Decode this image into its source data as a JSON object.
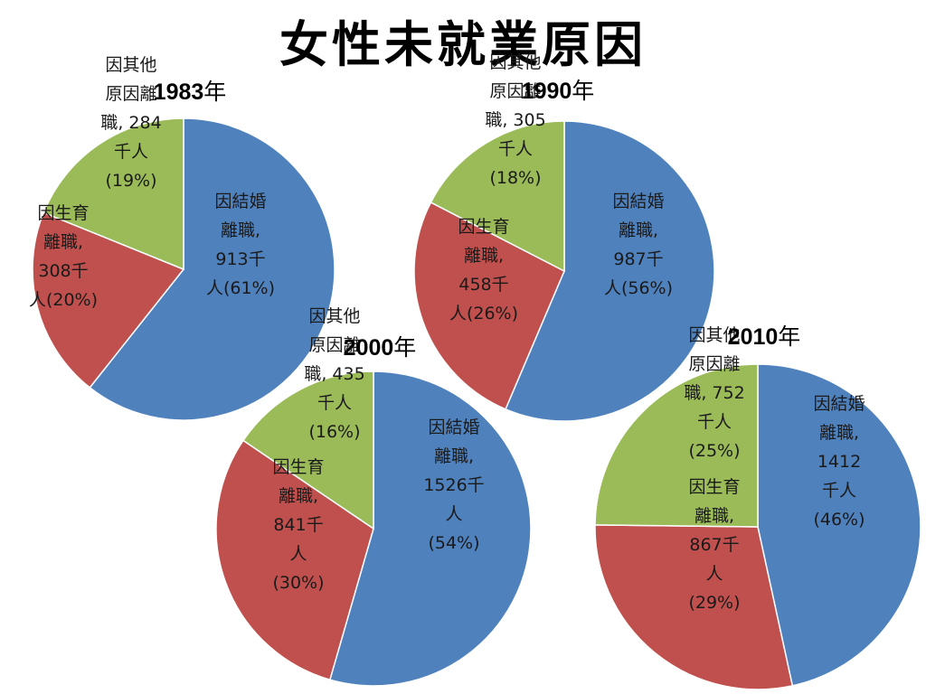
{
  "slide": {
    "title": "女性未就業原因"
  },
  "colors": {
    "marriage": "#4F81BD",
    "childbirth": "#C0504D",
    "other": "#9BBB59"
  },
  "chart_data": [
    {
      "type": "pie",
      "title": "1983年",
      "title_parts": [
        "1983",
        "年"
      ],
      "slices": [
        {
          "category": "因結婚離職",
          "value": 913,
          "unit": "千人",
          "percent": 61,
          "color": "#4F81BD",
          "label_lines": [
            "因結婚",
            "離職,",
            "913千",
            "人(61%)"
          ]
        },
        {
          "category": "因生育離職",
          "value": 308,
          "unit": "千人",
          "percent": 20,
          "color": "#C0504D",
          "label_lines": [
            "因生育",
            "離職,",
            "308千",
            "人(20%)"
          ]
        },
        {
          "category": "因其他原因離職",
          "value": 284,
          "unit": "千人",
          "percent": 19,
          "color": "#9BBB59",
          "label_lines": [
            "因其他",
            "原因離",
            "職, 284",
            "千人",
            "(19%)"
          ]
        }
      ]
    },
    {
      "type": "pie",
      "title": "1990年",
      "title_parts": [
        "1990",
        "年"
      ],
      "slices": [
        {
          "category": "因結婚離職",
          "value": 987,
          "unit": "千人",
          "percent": 56,
          "color": "#4F81BD",
          "label_lines": [
            "因結婚",
            "離職,",
            "987千",
            "人(56%)"
          ]
        },
        {
          "category": "因生育離職",
          "value": 458,
          "unit": "千人",
          "percent": 26,
          "color": "#C0504D",
          "label_lines": [
            "因生育",
            "離職,",
            "458千",
            "人(26%)"
          ]
        },
        {
          "category": "因其他原因離職",
          "value": 305,
          "unit": "千人",
          "percent": 18,
          "color": "#9BBB59",
          "label_lines": [
            "因其他",
            "原因離",
            "職, 305",
            "千人",
            "(18%)"
          ]
        }
      ]
    },
    {
      "type": "pie",
      "title": "2000年",
      "title_parts": [
        "2000",
        "年"
      ],
      "slices": [
        {
          "category": "因結婚離職",
          "value": 1526,
          "unit": "千人",
          "percent": 54,
          "color": "#4F81BD",
          "label_lines": [
            "因結婚",
            "離職,",
            "1526千",
            "人",
            "(54%)"
          ]
        },
        {
          "category": "因生育離職",
          "value": 841,
          "unit": "千人",
          "percent": 30,
          "color": "#C0504D",
          "label_lines": [
            "因生育",
            "離職,",
            "841千",
            "人",
            "(30%)"
          ]
        },
        {
          "category": "因其他原因離職",
          "value": 435,
          "unit": "千人",
          "percent": 16,
          "color": "#9BBB59",
          "label_lines": [
            "因其他",
            "原因離",
            "職, 435",
            "千人",
            "(16%)"
          ]
        }
      ]
    },
    {
      "type": "pie",
      "title": "2010年",
      "title_parts": [
        "2010",
        "年"
      ],
      "slices": [
        {
          "category": "因結婚離職",
          "value": 1412,
          "unit": "千人",
          "percent": 46,
          "color": "#4F81BD",
          "label_lines": [
            "因結婚",
            "離職,",
            "1412",
            "千人",
            "(46%)"
          ]
        },
        {
          "category": "因生育離職",
          "value": 867,
          "unit": "千人",
          "percent": 29,
          "color": "#C0504D",
          "label_lines": [
            "因生育",
            "離職,",
            "867千",
            "人",
            "(29%)"
          ]
        },
        {
          "category": "因其他原因離職",
          "value": 752,
          "unit": "千人",
          "percent": 25,
          "color": "#9BBB59",
          "label_lines": [
            "因其他",
            "原因離",
            "職, 752",
            "千人",
            "(25%)"
          ]
        }
      ]
    }
  ]
}
